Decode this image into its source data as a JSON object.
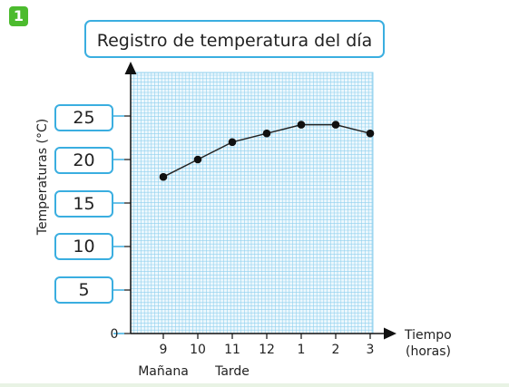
{
  "badge": "1",
  "colors": {
    "accent": "#3aaee0",
    "grid": "#8fd0ee",
    "badge": "#4cbb2e",
    "line": "#222222"
  },
  "chart_data": {
    "type": "line",
    "title": "Registro de temperatura del día",
    "xlabel": "Tiempo (horas)",
    "xlabel_lines": [
      "Tiempo",
      "(horas)"
    ],
    "ylabel": "Temperaturas (°C)",
    "categories": [
      "9",
      "10",
      "11",
      "12",
      "1",
      "2",
      "3"
    ],
    "period_labels": [
      {
        "text": "Mañana",
        "at": "9"
      },
      {
        "text": "Tarde",
        "at": "11"
      }
    ],
    "series": [
      {
        "values": [
          18,
          20,
          22,
          23,
          24,
          24,
          23
        ]
      }
    ],
    "y_ticks": [
      "25",
      "20",
      "15",
      "10",
      "5",
      "0"
    ],
    "ylim": [
      0,
      30
    ],
    "grid": true
  }
}
